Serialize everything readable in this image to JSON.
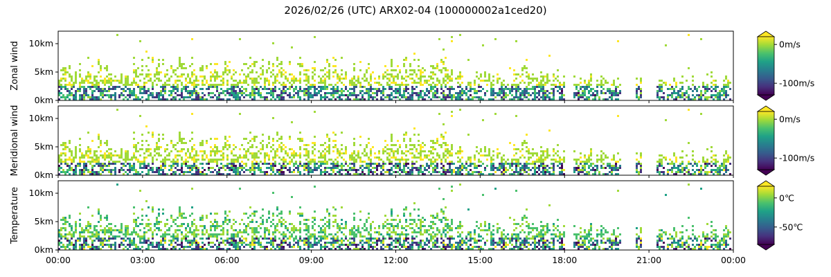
{
  "title": "2026/02/26 (UTC) ARX02-04 (100000002a1ced20)",
  "palette": [
    "#440154",
    "#46327e",
    "#365c8d",
    "#277f8e",
    "#1fa187",
    "#4ac16d",
    "#a0da39",
    "#fde725"
  ],
  "time_ticks": [
    "00:00",
    "03:00",
    "06:00",
    "09:00",
    "12:00",
    "15:00",
    "18:00",
    "21:00",
    "00:00"
  ],
  "height_ticks": [
    "0km",
    "5km",
    "10km"
  ],
  "chart_data": [
    {
      "type": "heatmap",
      "ylabel": "Zonal wind",
      "x_range_hours": [
        0,
        24
      ],
      "y_range_km": [
        0,
        12
      ],
      "colorbar": {
        "ticks": [
          "0m/s",
          "-100m/s"
        ],
        "tick_values": [
          0,
          -100
        ],
        "range": [
          -130,
          20
        ],
        "extend": "both"
      },
      "value_pattern": {
        "upper_km_above": 2.5,
        "upper_range": [
          -10,
          15
        ],
        "lower_range": [
          -120,
          0
        ]
      }
    },
    {
      "type": "heatmap",
      "ylabel": "Meridional wind",
      "x_range_hours": [
        0,
        24
      ],
      "y_range_km": [
        0,
        12
      ],
      "colorbar": {
        "ticks": [
          "0m/s",
          "-100m/s"
        ],
        "tick_values": [
          0,
          -100
        ],
        "range": [
          -130,
          20
        ],
        "extend": "both"
      },
      "value_pattern": {
        "upper_km_above": 2.0,
        "upper_range": [
          -10,
          15
        ],
        "lower_range": [
          -130,
          15
        ]
      }
    },
    {
      "type": "heatmap",
      "ylabel": "Temperature",
      "x_range_hours": [
        0,
        24
      ],
      "y_range_km": [
        0,
        12
      ],
      "colorbar": {
        "ticks": [
          "0℃",
          "-50℃"
        ],
        "tick_values": [
          0,
          -50
        ],
        "range": [
          -80,
          20
        ],
        "extend": "both"
      },
      "value_pattern": {
        "upper_km_above": 2.0,
        "upper_range": [
          -20,
          10
        ],
        "lower_range": [
          -80,
          20
        ]
      }
    }
  ]
}
